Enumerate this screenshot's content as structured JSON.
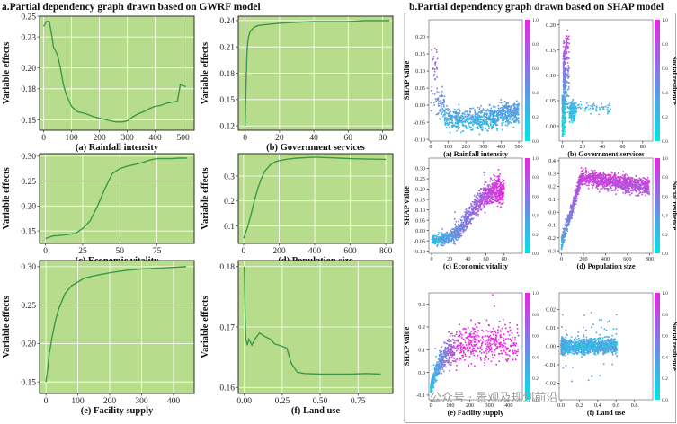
{
  "figure": {
    "title_a": "a.Partial dependency graph drawn based on GWRF model",
    "title_b": "b.Partial dependency graph drawn based on SHAP model",
    "watermark": "公众号 · 景观及规划前沿"
  },
  "colors": {
    "panel_bg": "#b7dc8c",
    "grid": "#ffffff",
    "line": "#3a9a4a",
    "border": "#1a1a1a"
  },
  "chart_data": [
    {
      "type": "line",
      "id": "a-rain",
      "title": "(a) Rainfall intensity",
      "ylabel": "Variable effects",
      "xlim": [
        -15,
        540
      ],
      "ylim": [
        0.14,
        0.25
      ],
      "xticks": [
        0,
        100,
        200,
        300,
        400,
        500
      ],
      "xtick_labels": [
        "0",
        "100",
        "200",
        "300",
        "400",
        "500"
      ],
      "yticks": [
        0.15,
        0.18,
        0.2,
        0.23,
        0.25
      ],
      "ytick_labels": [
        "0.15",
        "0.18",
        "0.20",
        "0.23",
        "0.25"
      ],
      "x": [
        0,
        10,
        20,
        30,
        35,
        40,
        50,
        60,
        70,
        80,
        100,
        120,
        150,
        180,
        210,
        240,
        260,
        280,
        300,
        320,
        340,
        360,
        380,
        400,
        420,
        440,
        460,
        480,
        490,
        500,
        510
      ],
      "y": [
        0.24,
        0.245,
        0.245,
        0.23,
        0.22,
        0.218,
        0.212,
        0.2,
        0.185,
        0.175,
        0.163,
        0.158,
        0.156,
        0.153,
        0.151,
        0.149,
        0.148,
        0.148,
        0.149,
        0.153,
        0.156,
        0.158,
        0.161,
        0.163,
        0.164,
        0.166,
        0.167,
        0.168,
        0.184,
        0.183,
        0.182
      ]
    },
    {
      "type": "line",
      "id": "a-gov",
      "title": "(b) Government services",
      "ylabel": "Variable effects",
      "xlim": [
        -4,
        86
      ],
      "ylim": [
        0.115,
        0.245
      ],
      "xticks": [
        0,
        20,
        40,
        60,
        80
      ],
      "xtick_labels": [
        "0",
        "20",
        "40",
        "60",
        "80"
      ],
      "yticks": [
        0.12,
        0.15,
        0.18,
        0.21,
        0.24
      ],
      "ytick_labels": [
        "0.12",
        "0.15",
        "0.18",
        "0.21",
        "0.24"
      ],
      "x": [
        0,
        0.5,
        1,
        1.5,
        2,
        3,
        4,
        5,
        7,
        10,
        15,
        20,
        30,
        40,
        50,
        60,
        70,
        80,
        84
      ],
      "y": [
        0.12,
        0.165,
        0.2,
        0.215,
        0.222,
        0.228,
        0.23,
        0.232,
        0.234,
        0.235,
        0.236,
        0.237,
        0.238,
        0.239,
        0.239,
        0.239,
        0.24,
        0.24,
        0.24
      ]
    },
    {
      "type": "line",
      "id": "a-eco",
      "title": "(c) Economic vitality",
      "ylabel": "Variable effects",
      "xlim": [
        -4,
        100
      ],
      "ylim": [
        0.125,
        0.305
      ],
      "xticks": [
        0,
        25,
        50,
        75
      ],
      "xtick_labels": [
        "0",
        "25",
        "50",
        "75"
      ],
      "yticks": [
        0.15,
        0.2,
        0.25,
        0.3
      ],
      "ytick_labels": [
        "0.15",
        "0.20",
        "0.25",
        "0.30"
      ],
      "x": [
        0,
        5,
        10,
        15,
        20,
        25,
        30,
        35,
        40,
        45,
        50,
        55,
        60,
        65,
        70,
        75,
        80,
        85,
        90,
        95
      ],
      "y": [
        0.135,
        0.14,
        0.141,
        0.143,
        0.145,
        0.155,
        0.17,
        0.2,
        0.235,
        0.265,
        0.275,
        0.28,
        0.283,
        0.287,
        0.292,
        0.295,
        0.295,
        0.295,
        0.296,
        0.296
      ]
    },
    {
      "type": "line",
      "id": "a-pop",
      "title": "(d) Population size",
      "ylabel": "Variable effects",
      "xlim": [
        -30,
        840
      ],
      "ylim": [
        0.03,
        0.39
      ],
      "xticks": [
        0,
        200,
        400,
        600,
        800
      ],
      "xtick_labels": [
        "0",
        "200",
        "400",
        "600",
        "800"
      ],
      "yticks": [
        0.1,
        0.2,
        0.3
      ],
      "ytick_labels": [
        "0.1",
        "0.2",
        "0.3"
      ],
      "x": [
        0,
        20,
        40,
        60,
        80,
        100,
        120,
        150,
        180,
        200,
        250,
        300,
        400,
        500,
        600,
        700,
        800
      ],
      "y": [
        0.05,
        0.09,
        0.14,
        0.2,
        0.25,
        0.29,
        0.32,
        0.345,
        0.358,
        0.362,
        0.368,
        0.372,
        0.376,
        0.373,
        0.37,
        0.368,
        0.367
      ]
    },
    {
      "type": "line",
      "id": "a-fac",
      "title": "(e) Facility supply",
      "ylabel": "Variable effects",
      "xlim": [
        -20,
        465
      ],
      "ylim": [
        0.135,
        0.308
      ],
      "xticks": [
        0,
        100,
        200,
        300,
        400
      ],
      "xtick_labels": [
        "0",
        "100",
        "200",
        "300",
        "400"
      ],
      "yticks": [
        0.15,
        0.2,
        0.25,
        0.3
      ],
      "ytick_labels": [
        "0.15",
        "0.20",
        "0.25",
        "0.30"
      ],
      "x": [
        0,
        5,
        10,
        20,
        30,
        40,
        50,
        60,
        80,
        100,
        120,
        150,
        200,
        250,
        300,
        350,
        400,
        440
      ],
      "y": [
        0.15,
        0.165,
        0.185,
        0.21,
        0.23,
        0.245,
        0.255,
        0.265,
        0.275,
        0.28,
        0.285,
        0.288,
        0.292,
        0.295,
        0.297,
        0.298,
        0.299,
        0.3
      ]
    },
    {
      "type": "line",
      "id": "a-land",
      "title": "(f) Land use",
      "ylabel": "Variable effects",
      "xlim": [
        -0.04,
        0.98
      ],
      "ylim": [
        0.159,
        0.181
      ],
      "xticks": [
        0,
        0.25,
        0.5,
        0.75
      ],
      "xtick_labels": [
        "0.00",
        "0.25",
        "0.50",
        "0.75"
      ],
      "yticks": [
        0.16,
        0.17,
        0.18
      ],
      "ytick_labels": [
        "0.16",
        "0.17",
        "0.18"
      ],
      "x": [
        0,
        0.005,
        0.01,
        0.02,
        0.03,
        0.05,
        0.07,
        0.1,
        0.13,
        0.17,
        0.2,
        0.25,
        0.28,
        0.31,
        0.35,
        0.4,
        0.5,
        0.6,
        0.7,
        0.8,
        0.9
      ],
      "y": [
        0.18,
        0.172,
        0.168,
        0.167,
        0.168,
        0.167,
        0.168,
        0.169,
        0.1685,
        0.168,
        0.1672,
        0.1668,
        0.1665,
        0.164,
        0.1625,
        0.1623,
        0.1622,
        0.1622,
        0.1622,
        0.1623,
        0.1622
      ]
    },
    {
      "type": "scatter",
      "id": "b-rain",
      "title": "(a) Rainfall intensity",
      "ylabel": "SHAP value",
      "xlim": [
        -10,
        520
      ],
      "ylim": [
        -0.105,
        0.25
      ],
      "xticks": [
        0,
        100,
        200,
        300,
        400,
        500
      ],
      "xtick_labels": [
        "0",
        "100",
        "200",
        "300",
        "400",
        "500"
      ],
      "yticks": [
        -0.1,
        -0.05,
        0,
        0.05,
        0.1,
        0.15,
        0.2
      ],
      "ytick_labels": [
        "-0.10",
        "-0.05",
        "0.00",
        "0.05",
        "0.10",
        "0.15",
        "0.20"
      ],
      "n": 900,
      "seed": 11,
      "colorbar": {
        "ticks": [
          "0.0",
          "0.2",
          "0.4",
          "0.6",
          "0.8",
          "1.0"
        ]
      }
    },
    {
      "type": "scatter",
      "id": "b-gov",
      "title": "(b) Government services",
      "ylabel": "",
      "xlim": [
        -3,
        90
      ],
      "ylim": [
        -0.03,
        0.21
      ],
      "xticks": [
        0,
        20,
        40,
        60,
        80
      ],
      "xtick_labels": [
        "0",
        "20",
        "40",
        "60",
        "80"
      ],
      "yticks": [
        0,
        0.05,
        0.1,
        0.15,
        0.2
      ],
      "ytick_labels": [
        "0.00",
        "0.05",
        "0.10",
        "0.15",
        "0.20"
      ],
      "n": 700,
      "seed": 23,
      "colorbar": {
        "label": "Social resilience",
        "ticks": [
          "0.0",
          "0.2",
          "0.4",
          "0.6",
          "0.8",
          "1.0"
        ]
      }
    },
    {
      "type": "scatter",
      "id": "b-eco",
      "title": "(c) Economic vitality",
      "ylabel": "SHAP value",
      "xlim": [
        -3,
        100
      ],
      "ylim": [
        -0.11,
        0.35
      ],
      "xticks": [
        0,
        20,
        40,
        60,
        80
      ],
      "xtick_labels": [
        "0",
        "20",
        "40",
        "60",
        "80"
      ],
      "yticks": [
        -0.1,
        -0.05,
        0,
        0.05,
        0.1,
        0.15,
        0.2,
        0.25,
        0.3
      ],
      "ytick_labels": [
        "-0.10",
        "-0.05",
        "0.00",
        "0.05",
        "0.10",
        "0.15",
        "0.20",
        "0.25",
        "0.30"
      ],
      "n": 1100,
      "seed": 37,
      "colorbar": {
        "ticks": [
          "0.0",
          "0.2",
          "0.4",
          "0.6",
          "0.8",
          "1.0"
        ]
      }
    },
    {
      "type": "scatter",
      "id": "b-pop",
      "title": "(d) Population size",
      "ylabel": "",
      "xlim": [
        -20,
        830
      ],
      "ylim": [
        -0.32,
        0.42
      ],
      "xticks": [
        0,
        200,
        400,
        600,
        800
      ],
      "xtick_labels": [
        "0",
        "200",
        "400",
        "600",
        "800"
      ],
      "yticks": [
        -0.3,
        -0.2,
        -0.1,
        0,
        0.1,
        0.2,
        0.3,
        0.4
      ],
      "ytick_labels": [
        "-0.3",
        "-0.2",
        "-0.1",
        "0.0",
        "0.1",
        "0.2",
        "0.3",
        "0.4"
      ],
      "n": 1300,
      "seed": 53,
      "colorbar": {
        "label": "Social resilience",
        "ticks": [
          "0.0",
          "0.2",
          "0.4",
          "0.6",
          "0.8",
          "1.0"
        ]
      }
    },
    {
      "type": "scatter",
      "id": "b-fac",
      "title": "(e) Facility supply",
      "ylabel": "SHAP value",
      "xlim": [
        -10,
        470
      ],
      "ylim": [
        -0.12,
        0.35
      ],
      "xticks": [
        0,
        100,
        200,
        300,
        400
      ],
      "xtick_labels": [
        "0",
        "100",
        "200",
        "300",
        "400"
      ],
      "yticks": [
        -0.1,
        0,
        0.1,
        0.2,
        0.3
      ],
      "ytick_labels": [
        "-0.1",
        "0.0",
        "0.1",
        "0.2",
        "0.3"
      ],
      "n": 900,
      "seed": 71,
      "colorbar": {
        "ticks": [
          "0.0",
          "0.2",
          "0.4",
          "0.6",
          "0.8",
          "1.0"
        ]
      }
    },
    {
      "type": "scatter",
      "id": "b-land",
      "title": "(f) Land use",
      "ylabel": "",
      "xlim": [
        -0.02,
        1.0
      ],
      "ylim": [
        -0.029,
        0.029
      ],
      "xticks": [
        0,
        0.2,
        0.4,
        0.6,
        0.8
      ],
      "xtick_labels": [
        "0.0",
        "0.2",
        "0.4",
        "0.6",
        "0.8"
      ],
      "yticks": [
        -0.02,
        -0.01,
        0,
        0.01,
        0.02
      ],
      "ytick_labels": [
        "-0.02",
        "-0.01",
        "0.00",
        "0.01",
        "0.02"
      ],
      "n": 1100,
      "seed": 89,
      "colorbar": {
        "label": "Social resilience",
        "ticks": [
          "0.0",
          "0.2",
          "0.4",
          "0.6",
          "0.8",
          "1.0"
        ]
      }
    }
  ]
}
